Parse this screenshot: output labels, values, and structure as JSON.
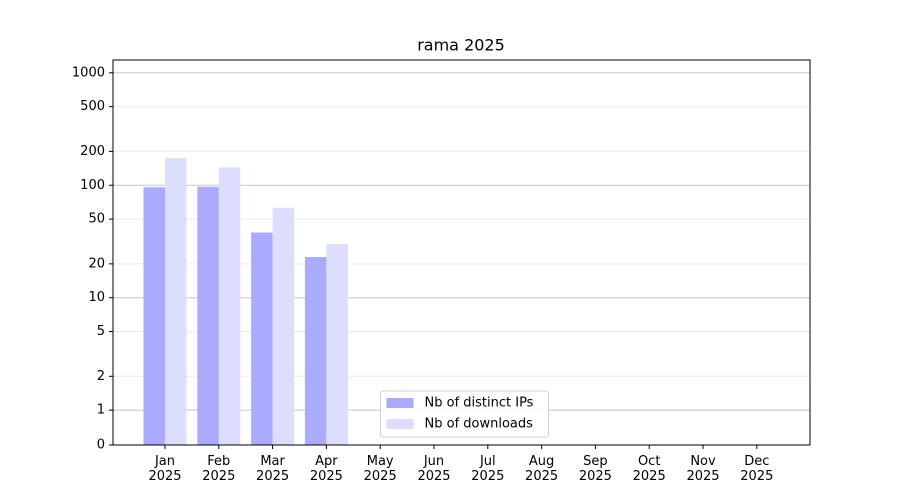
{
  "chart_data": {
    "type": "bar",
    "title": "rama 2025",
    "categories": [
      "Jan\n2025",
      "Feb\n2025",
      "Mar\n2025",
      "Apr\n2025",
      "May\n2025",
      "Jun\n2025",
      "Jul\n2025",
      "Aug\n2025",
      "Sep\n2025",
      "Oct\n2025",
      "Nov\n2025",
      "Dec\n2025"
    ],
    "series": [
      {
        "name": "Nb of distinct IPs",
        "color": "#aaaaff",
        "values": [
          96,
          97,
          38,
          23,
          null,
          null,
          null,
          null,
          null,
          null,
          null,
          null
        ]
      },
      {
        "name": "Nb of downloads",
        "color": "#ddddff",
        "values": [
          174,
          144,
          63,
          30,
          null,
          null,
          null,
          null,
          null,
          null,
          null,
          null
        ]
      }
    ],
    "yscale": "symlog",
    "ylim": [
      0,
      1300
    ],
    "yticks": [
      0,
      1,
      2,
      5,
      10,
      20,
      50,
      100,
      200,
      500,
      1000
    ],
    "grid": true,
    "legend": "lower center"
  }
}
